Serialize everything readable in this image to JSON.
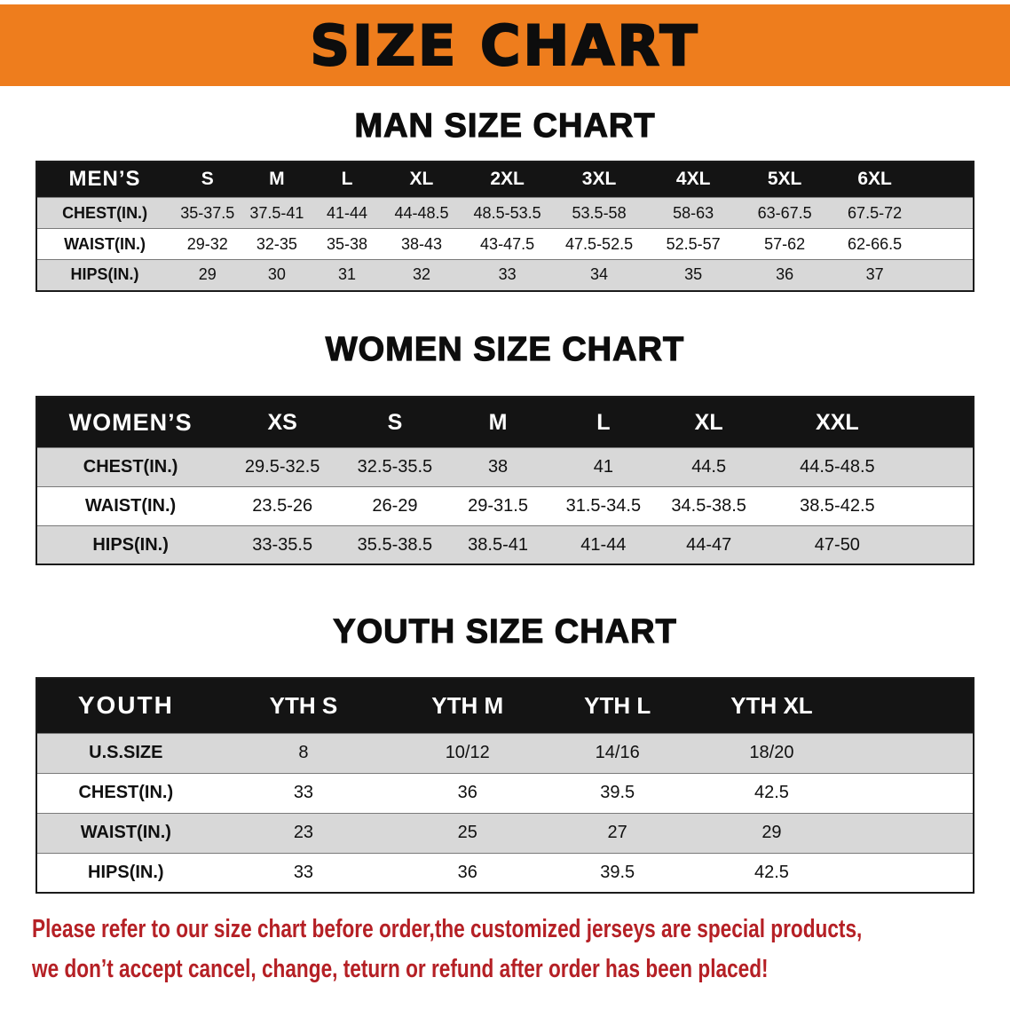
{
  "banner": {
    "title": "SIZE CHART"
  },
  "theme": {
    "banner_orange": "#ee7d1d",
    "header_black": "#141414",
    "row_gray": "#d8d8d8",
    "note_red": "#b52025"
  },
  "chart_data": [
    {
      "type": "table",
      "title": "MAN SIZE CHART",
      "columns": [
        "MEN’S",
        "S",
        "M",
        "L",
        "XL",
        "2XL",
        "3XL",
        "4XL",
        "5XL",
        "6XL"
      ],
      "rows": [
        [
          "CHEST(IN.)",
          "35-37.5",
          "37.5-41",
          "41-44",
          "44-48.5",
          "48.5-53.5",
          "53.5-58",
          "58-63",
          "63-67.5",
          "67.5-72"
        ],
        [
          "WAIST(IN.)",
          "29-32",
          "32-35",
          "35-38",
          "38-43",
          "43-47.5",
          "47.5-52.5",
          "52.5-57",
          "57-62",
          "62-66.5"
        ],
        [
          "HIPS(IN.)",
          "29",
          "30",
          "31",
          "32",
          "33",
          "34",
          "35",
          "36",
          "37"
        ]
      ]
    },
    {
      "type": "table",
      "title": "WOMEN SIZE CHART",
      "columns": [
        "WOMEN’S",
        "XS",
        "S",
        "M",
        "L",
        "XL",
        "XXL"
      ],
      "rows": [
        [
          "CHEST(IN.)",
          "29.5-32.5",
          "32.5-35.5",
          "38",
          "41",
          "44.5",
          "44.5-48.5"
        ],
        [
          "WAIST(IN.)",
          "23.5-26",
          "26-29",
          "29-31.5",
          "31.5-34.5",
          "34.5-38.5",
          "38.5-42.5"
        ],
        [
          "HIPS(IN.)",
          "33-35.5",
          "35.5-38.5",
          "38.5-41",
          "41-44",
          "44-47",
          "47-50"
        ]
      ]
    },
    {
      "type": "table",
      "title": "YOUTH SIZE CHART",
      "columns": [
        "YOUTH",
        "YTH S",
        "YTH M",
        "YTH L",
        "YTH XL"
      ],
      "rows": [
        [
          "U.S.SIZE",
          "8",
          "10/12",
          "14/16",
          "18/20"
        ],
        [
          "CHEST(IN.)",
          "33",
          "36",
          "39.5",
          "42.5"
        ],
        [
          "WAIST(IN.)",
          "23",
          "25",
          "27",
          "29"
        ],
        [
          "HIPS(IN.)",
          "33",
          "36",
          "39.5",
          "42.5"
        ]
      ]
    }
  ],
  "footnote": {
    "line1": "Please refer to our size chart before order,the customized jerseys are special products,",
    "line2": "we don’t accept cancel, change, teturn or refund after order has been placed!"
  }
}
